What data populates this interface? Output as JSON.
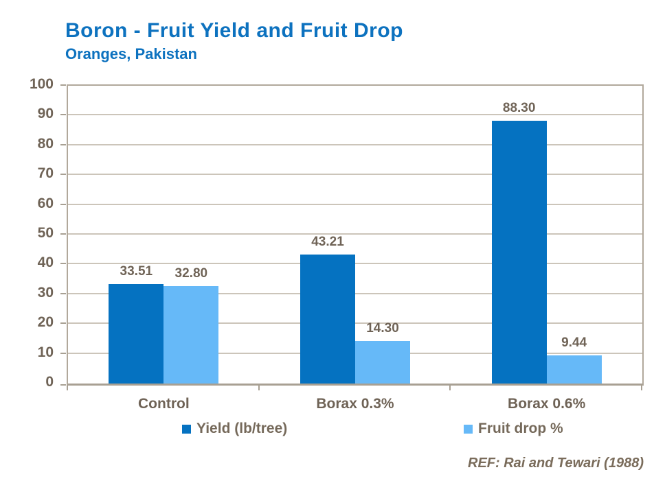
{
  "header": {
    "title": "Boron - Fruit Yield and Fruit Drop",
    "subtitle": "Oranges, Pakistan"
  },
  "footer": {
    "reference": "REF: Rai and Tewari (1988)"
  },
  "colors": {
    "title_blue": "#0d72bf",
    "yield_bar": "#0572c1",
    "fruit_drop_bar": "#66b9f8",
    "axis_text": "#6f6356",
    "gridline": "#ccc5ba",
    "axis_line": "#a8a093"
  },
  "chart_data": {
    "type": "bar",
    "title": "Boron - Fruit Yield and Fruit Drop",
    "subtitle": "Oranges, Pakistan",
    "categories": [
      "Control",
      "Borax 0.3%",
      "Borax 0.6%"
    ],
    "series": [
      {
        "name": "Yield (lb/tree)",
        "color_key": "yield_bar",
        "values": [
          33.51,
          43.21,
          88.3
        ],
        "labels": [
          "33.51",
          "43.21",
          "88.30"
        ]
      },
      {
        "name": "Fruit drop %",
        "color_key": "fruit_drop_bar",
        "values": [
          32.8,
          14.3,
          9.44
        ],
        "labels": [
          "32.80",
          "14.30",
          "9.44"
        ]
      }
    ],
    "xlabel": "",
    "ylabel": "",
    "ylim": [
      0,
      100
    ],
    "ytick_step": 10,
    "grid": true,
    "legend_position": "bottom"
  }
}
